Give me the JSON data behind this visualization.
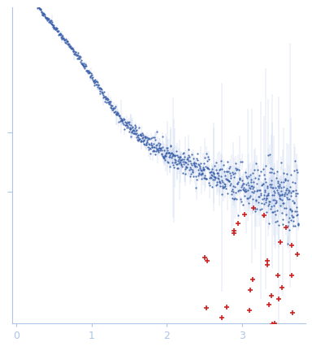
{
  "bg_color": "#ffffff",
  "point_color_main": "#3a5fa8",
  "point_color_outlier": "#cc2222",
  "error_bar_color": "#adc4e8",
  "axis_color": "#adc4e8",
  "tick_label_color": "#adc4e8",
  "xlim": [
    -0.05,
    3.85
  ],
  "ylim": [
    -4.2,
    1.1
  ],
  "xtick_positions": [
    0,
    1,
    2,
    3
  ],
  "xtick_labels": [
    "0",
    "1",
    "2",
    "3"
  ]
}
